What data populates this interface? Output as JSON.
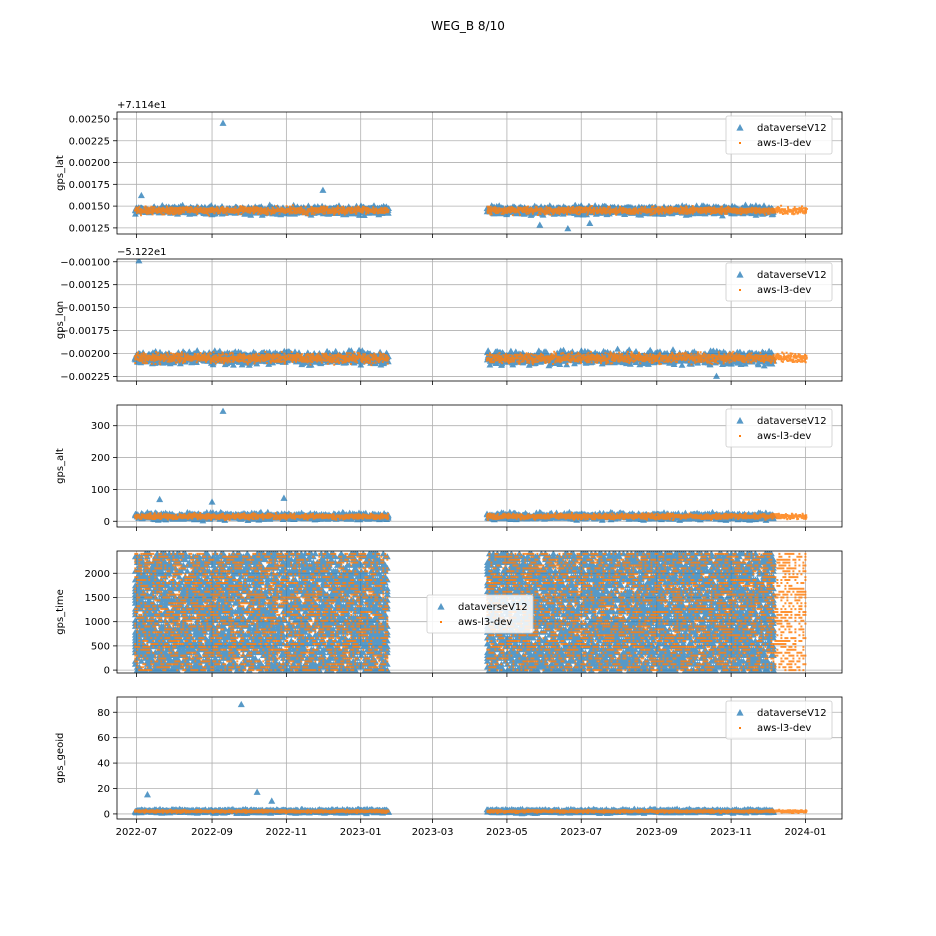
{
  "figure": {
    "suptitle": "WEG_B 8/10"
  },
  "colors": {
    "series1": "#1f77b4",
    "series2": "#ff7f0e",
    "grid": "#b0b0b0",
    "axis": "#000000"
  },
  "legend_labels": [
    "dataverseV12",
    "aws-l3-dev"
  ],
  "x_ticks": [
    "2022-07",
    "2022-09",
    "2022-11",
    "2023-01",
    "2023-03",
    "2023-05",
    "2023-07",
    "2023-09",
    "2023-11",
    "2024-01"
  ],
  "chart_data": [
    {
      "type": "scatter",
      "ylabel": "gps_lat",
      "offset_text": "+7.114e1",
      "yticks": [
        "0.00125",
        "0.00150",
        "0.00175",
        "0.00200",
        "0.00225",
        "0.00250"
      ],
      "ytick_values": [
        0.00125,
        0.0015,
        0.00175,
        0.002,
        0.00225,
        0.0025
      ],
      "ylim": [
        0.00118,
        0.00258
      ],
      "x_range": [
        "2022-06-15",
        "2024-01-31"
      ],
      "grid": true,
      "legend_position": "upper right",
      "series": [
        {
          "name": "dataverseV12",
          "marker": "triangle",
          "segments": [
            [
              "2022-06-30",
              "2023-01-24"
            ],
            [
              "2023-04-15",
              "2023-12-06"
            ]
          ],
          "center": 0.00145,
          "spread": 7e-05,
          "outliers": [
            [
              "2022-09-10",
              0.00245
            ],
            [
              "2022-12-01",
              0.00168
            ],
            [
              "2022-07-05",
              0.00162
            ],
            [
              "2023-05-28",
              0.00128
            ],
            [
              "2023-06-20",
              0.00124
            ],
            [
              "2023-07-08",
              0.0013
            ]
          ]
        },
        {
          "name": "aws-l3-dev",
          "marker": "point",
          "segments": [
            [
              "2022-06-30",
              "2023-01-24"
            ],
            [
              "2023-04-15",
              "2024-01-02"
            ]
          ],
          "center": 0.00145,
          "spread": 6e-05
        }
      ]
    },
    {
      "type": "scatter",
      "ylabel": "gps_lon",
      "offset_text": "−5.122e1",
      "yticks": [
        "−0.00225",
        "−0.00200",
        "−0.00175",
        "−0.00150",
        "−0.00125",
        "−0.00100"
      ],
      "ytick_values": [
        -0.00225,
        -0.002,
        -0.00175,
        -0.0015,
        -0.00125,
        -0.001
      ],
      "ylim": [
        -0.0023,
        -0.00097
      ],
      "x_range": [
        "2022-06-15",
        "2024-01-31"
      ],
      "grid": true,
      "legend_position": "upper right",
      "series": [
        {
          "name": "dataverseV12",
          "marker": "triangle",
          "segments": [
            [
              "2022-06-30",
              "2023-01-24"
            ],
            [
              "2023-04-15",
              "2023-12-06"
            ]
          ],
          "center": -0.00205,
          "spread": 0.0001,
          "outliers": [
            [
              "2022-07-03",
              -0.00099
            ],
            [
              "2023-10-20",
              -0.00225
            ]
          ]
        },
        {
          "name": "aws-l3-dev",
          "marker": "point",
          "segments": [
            [
              "2022-06-30",
              "2023-01-24"
            ],
            [
              "2023-04-15",
              "2024-01-02"
            ]
          ],
          "center": -0.00205,
          "spread": 8e-05
        }
      ]
    },
    {
      "type": "scatter",
      "ylabel": "gps_alt",
      "offset_text": "",
      "yticks": [
        "0",
        "100",
        "200",
        "300"
      ],
      "ytick_values": [
        0,
        100,
        200,
        300
      ],
      "ylim": [
        -18,
        365
      ],
      "x_range": [
        "2022-06-15",
        "2024-01-31"
      ],
      "grid": true,
      "legend_position": "upper right",
      "series": [
        {
          "name": "dataverseV12",
          "marker": "triangle",
          "segments": [
            [
              "2022-06-30",
              "2023-01-24"
            ],
            [
              "2023-04-15",
              "2023-12-06"
            ]
          ],
          "center": 15,
          "spread": 15,
          "outliers": [
            [
              "2022-09-10",
              345
            ],
            [
              "2022-07-20",
              68
            ],
            [
              "2022-10-30",
              72
            ],
            [
              "2022-09-01",
              60
            ]
          ]
        },
        {
          "name": "aws-l3-dev",
          "marker": "point",
          "segments": [
            [
              "2022-06-30",
              "2023-01-24"
            ],
            [
              "2023-04-15",
              "2024-01-02"
            ]
          ],
          "center": 15,
          "spread": 12
        }
      ]
    },
    {
      "type": "scatter",
      "ylabel": "gps_time",
      "offset_text": "",
      "yticks": [
        "0",
        "500",
        "1000",
        "1500",
        "2000"
      ],
      "ytick_values": [
        0,
        500,
        1000,
        1500,
        2000
      ],
      "ylim": [
        -60,
        2460
      ],
      "x_range": [
        "2022-06-15",
        "2024-01-31"
      ],
      "grid": true,
      "legend_position": "center",
      "series": [
        {
          "name": "dataverseV12",
          "marker": "triangle",
          "segments": [
            [
              "2022-06-30",
              "2023-01-24"
            ],
            [
              "2023-04-15",
              "2023-12-06"
            ]
          ],
          "range": [
            0,
            2400
          ]
        },
        {
          "name": "aws-l3-dev",
          "marker": "point",
          "segments": [
            [
              "2022-06-30",
              "2023-01-24"
            ],
            [
              "2023-04-15",
              "2024-01-02"
            ]
          ],
          "range": [
            0,
            2400
          ]
        }
      ]
    },
    {
      "type": "scatter",
      "ylabel": "gps_geoid",
      "offset_text": "",
      "yticks": [
        "0",
        "20",
        "40",
        "60",
        "80"
      ],
      "ytick_values": [
        0,
        20,
        40,
        60,
        80
      ],
      "ylim": [
        -4,
        92
      ],
      "x_range": [
        "2022-06-15",
        "2024-01-31"
      ],
      "grid": true,
      "legend_position": "upper right",
      "series": [
        {
          "name": "dataverseV12",
          "marker": "triangle",
          "segments": [
            [
              "2022-06-30",
              "2023-01-24"
            ],
            [
              "2023-04-15",
              "2023-12-06"
            ]
          ],
          "center": 2,
          "spread": 2,
          "outliers": [
            [
              "2022-09-25",
              86
            ],
            [
              "2022-10-08",
              17
            ],
            [
              "2022-07-10",
              15
            ],
            [
              "2022-10-20",
              10
            ]
          ]
        },
        {
          "name": "aws-l3-dev",
          "marker": "point",
          "segments": [
            [
              "2022-06-30",
              "2023-01-24"
            ],
            [
              "2023-04-15",
              "2024-01-02"
            ]
          ],
          "center": 2,
          "spread": 1.5
        }
      ]
    }
  ]
}
